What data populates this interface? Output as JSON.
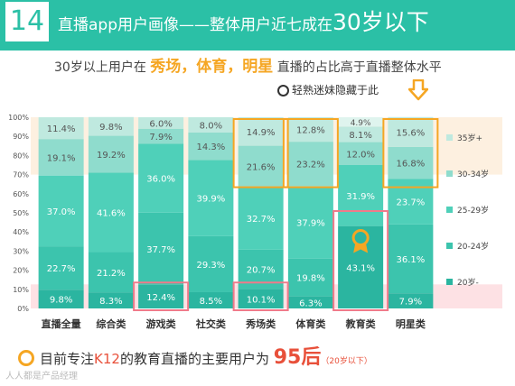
{
  "slide_number": "14",
  "header": {
    "title_main": "直播app用户画像——整体用户近七成在",
    "title_big": "30岁以下"
  },
  "subtitle": {
    "prefix": "30岁以上用户在",
    "hl1": "秀场",
    "sep1": "，",
    "hl2": "体育",
    "sep2": "，",
    "hl3": "明星",
    "suffix": "直播的占比高于直播整体水平"
  },
  "callout": "轻熟迷妹隐藏于此",
  "footer": {
    "prefix": "目前专注",
    "hl": "K12",
    "middle": "的教育直播的主要用户为",
    "big": "95后",
    "small": "（20岁以下）"
  },
  "watermark": "人人都是产品经理",
  "chart_data": {
    "type": "bar",
    "stacked": true,
    "percent": true,
    "categories": [
      "直播全量",
      "综合类",
      "游戏类",
      "社交类",
      "秀场类",
      "体育类",
      "教育类",
      "明星类"
    ],
    "series": [
      {
        "name": "20岁-",
        "color": "#2bb5a0",
        "values": [
          9.8,
          8.3,
          12.4,
          8.5,
          10.1,
          6.3,
          43.1,
          7.9
        ]
      },
      {
        "name": "20-24岁",
        "color": "#3cc4ad",
        "values": [
          22.7,
          21.2,
          37.7,
          29.3,
          20.7,
          19.8,
          null,
          36.1
        ]
      },
      {
        "name": "25-29岁",
        "color": "#4fd0b9",
        "values": [
          37.0,
          41.6,
          36.0,
          39.9,
          32.7,
          37.9,
          31.9,
          23.7
        ]
      },
      {
        "name": "30-34岁",
        "color": "#8fdccd",
        "values": [
          19.1,
          19.2,
          7.9,
          14.3,
          21.6,
          23.2,
          12.0,
          16.8
        ]
      },
      {
        "name": "35岁+",
        "color": "#bfe9df",
        "values": [
          11.4,
          9.8,
          6.0,
          8.0,
          14.9,
          12.8,
          8.1,
          15.6
        ]
      }
    ],
    "extra_labels": [
      {
        "category": "教育类",
        "value": 4.9
      }
    ],
    "yticks": [
      "0%",
      "10%",
      "20%",
      "30%",
      "40%",
      "50%",
      "60%",
      "70%",
      "80%",
      "90%",
      "100%"
    ],
    "ylim": [
      0,
      100
    ],
    "legend_position": "right",
    "highlight_colors": {
      "orange": "#f5a623",
      "pink": "#f07a8a",
      "band_pink": "#fde1e4",
      "band_peach": "#fdf0e0"
    }
  }
}
